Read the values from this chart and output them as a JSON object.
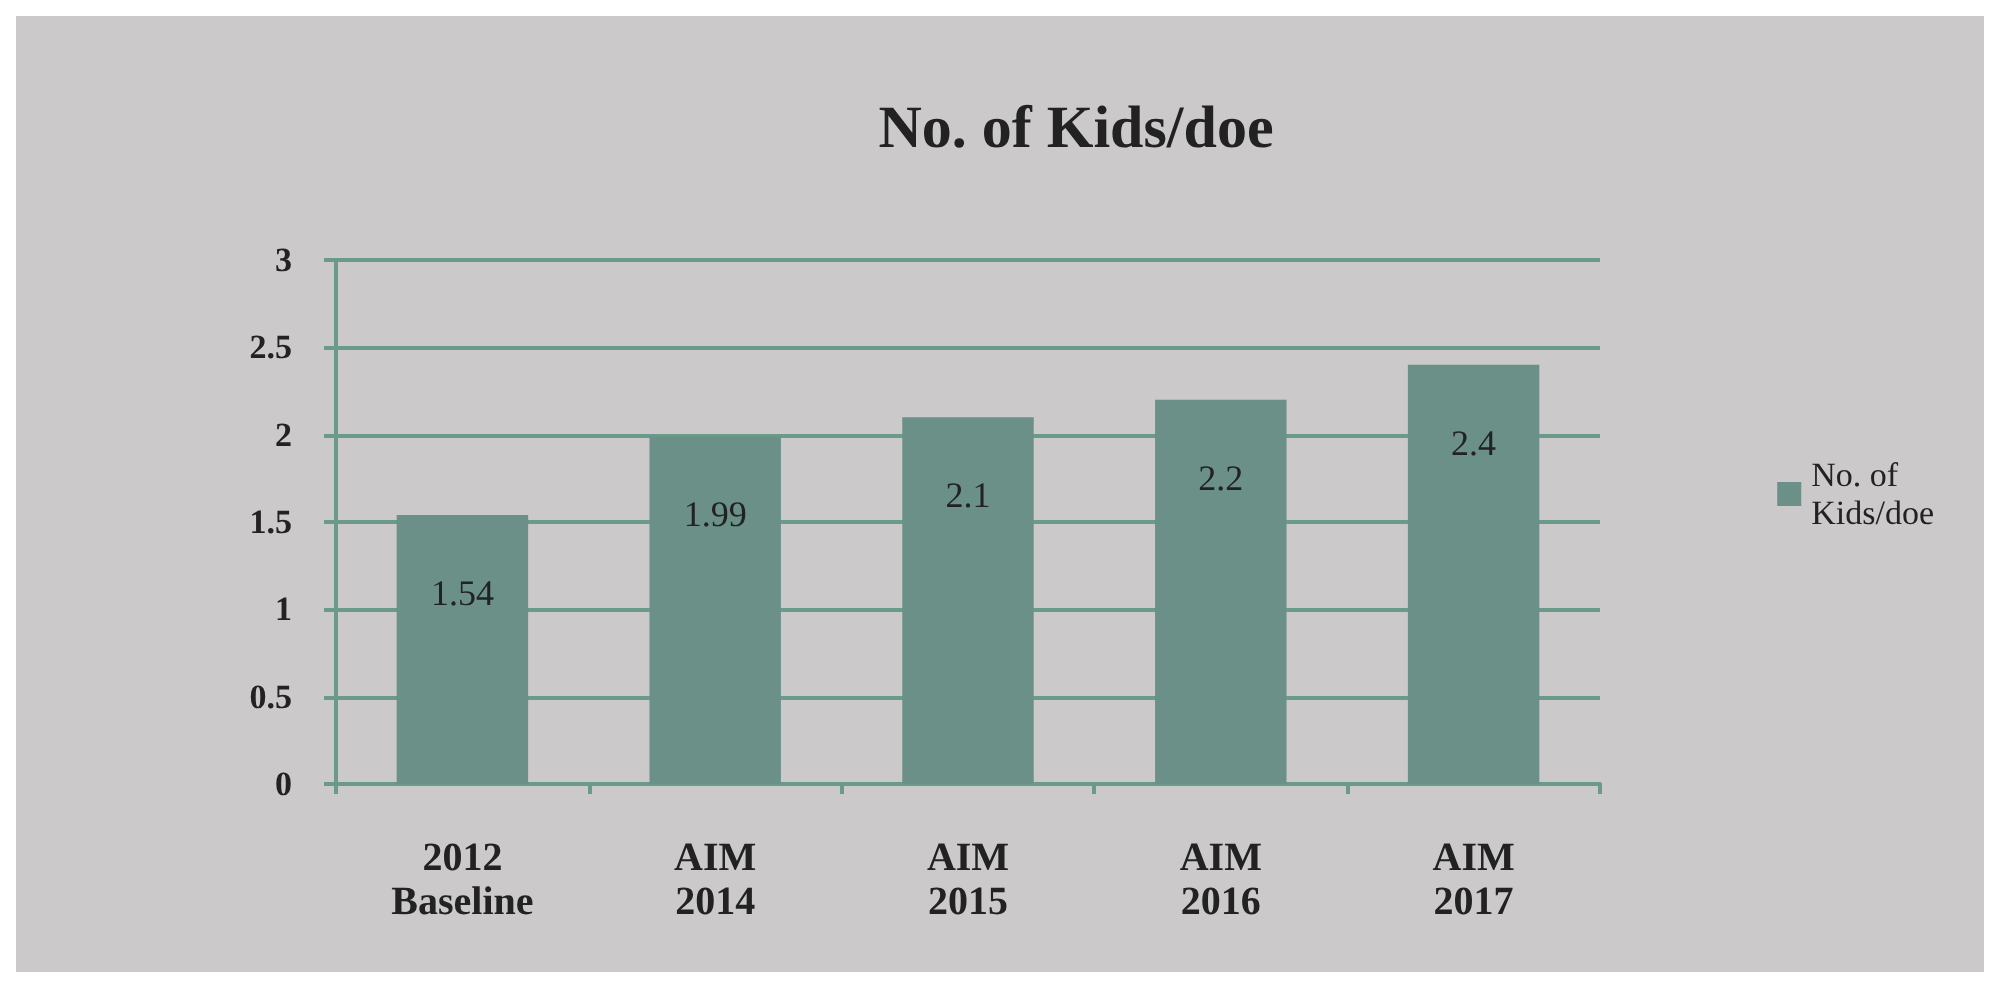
{
  "chart_data": {
    "type": "bar",
    "title": "No. of Kids/doe",
    "categories": [
      "2012 Baseline",
      "AIM 2014",
      "AIM 2015",
      "AIM 2016",
      "AIM 2017"
    ],
    "series": [
      {
        "name": "No. of Kids/doe",
        "color": "#6a9088",
        "values": [
          1.54,
          1.99,
          2.1,
          2.2,
          2.4
        ]
      }
    ],
    "ylim": [
      0,
      3
    ],
    "yticks": [
      0,
      0.5,
      1,
      1.5,
      2,
      2.5,
      3
    ],
    "grid": "y",
    "legend": "right",
    "data_labels": true
  }
}
